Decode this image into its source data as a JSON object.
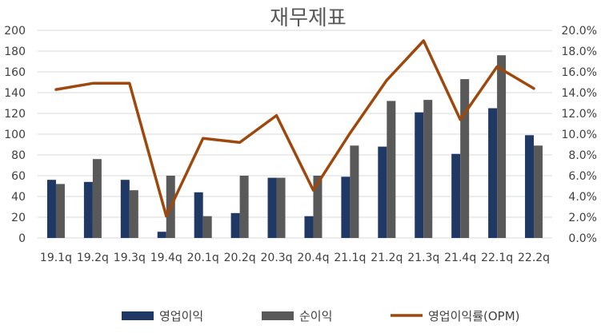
{
  "chart_data": {
    "type": "bar",
    "title": "재무제표",
    "categories": [
      "19.1q",
      "19.2q",
      "19.3q",
      "19.4q",
      "20.1q",
      "20.2q",
      "20.3q",
      "20.4q",
      "21.1q",
      "21.2q",
      "21.3q",
      "21.4q",
      "22.1q",
      "22.2q"
    ],
    "series": [
      {
        "name": "영업이익",
        "type": "bar",
        "axis": "left",
        "color": "#203864",
        "values": [
          56,
          54,
          56,
          6,
          44,
          24,
          58,
          21,
          59,
          88,
          121,
          81,
          125,
          99
        ]
      },
      {
        "name": "순이익",
        "type": "bar",
        "axis": "left",
        "color": "#595959",
        "values": [
          52,
          76,
          46,
          60,
          21,
          60,
          58,
          60,
          89,
          132,
          133,
          153,
          176,
          89
        ]
      },
      {
        "name": "영업이익률(OPM)",
        "type": "line",
        "axis": "right",
        "color": "#9e480e",
        "values": [
          14.3,
          14.9,
          14.9,
          2.1,
          9.6,
          9.2,
          11.8,
          4.6,
          10.1,
          15.2,
          19.0,
          11.4,
          16.5,
          14.4
        ]
      }
    ],
    "y_left": {
      "ylim": [
        0,
        200
      ],
      "ticks": [
        "0",
        "20",
        "40",
        "60",
        "80",
        "100",
        "120",
        "140",
        "160",
        "180",
        "200"
      ]
    },
    "y_right": {
      "ylim": [
        0,
        20
      ],
      "ticks": [
        "0.0%",
        "2.0%",
        "4.0%",
        "6.0%",
        "8.0%",
        "10.0%",
        "12.0%",
        "14.0%",
        "16.0%",
        "18.0%",
        "20.0%"
      ]
    },
    "grid": true,
    "legend": "bottom"
  }
}
